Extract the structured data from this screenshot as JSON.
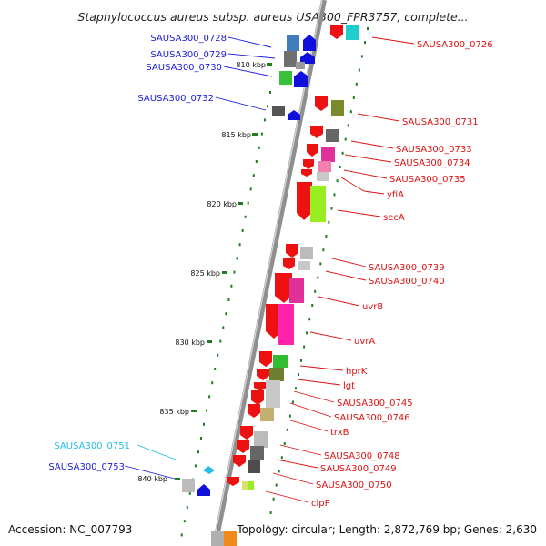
{
  "title": "Staphylococcus aureus subsp. aureus USA300_FPR3757, complete...",
  "footer": {
    "accession": "Accession: NC_007793",
    "topology": "Topology: circular; Length: 2,872,769 bp; Genes: 2,630"
  },
  "ticks": [
    "810 kbp",
    "815 kbp",
    "820 kbp",
    "825 kbp",
    "830 kbp",
    "835 kbp",
    "840 kbp"
  ],
  "colors": {
    "left_label": "#1a1adb",
    "right_label": "#dd1111",
    "highlight_label": "#22bde8",
    "backbone": "#8a8a8a",
    "ticks": "#1e7d1e"
  },
  "left_labels": [
    "SAUSA300_0728",
    "SAUSA300_0729",
    "SAUSA300_0730",
    "SAUSA300_0732",
    "SAUSA300_0751",
    "SAUSA300_0753"
  ],
  "right_labels": [
    "SAUSA300_0726",
    "SAUSA300_0731",
    "SAUSA300_0733",
    "SAUSA300_0734",
    "SAUSA300_0735",
    "yfiA",
    "secA",
    "SAUSA300_0739",
    "SAUSA300_0740",
    "uvrB",
    "uvrA",
    "hprK",
    "lgt",
    "SAUSA300_0745",
    "SAUSA300_0746",
    "trxB",
    "SAUSA300_0748",
    "SAUSA300_0749",
    "SAUSA300_0750",
    "clpP"
  ]
}
